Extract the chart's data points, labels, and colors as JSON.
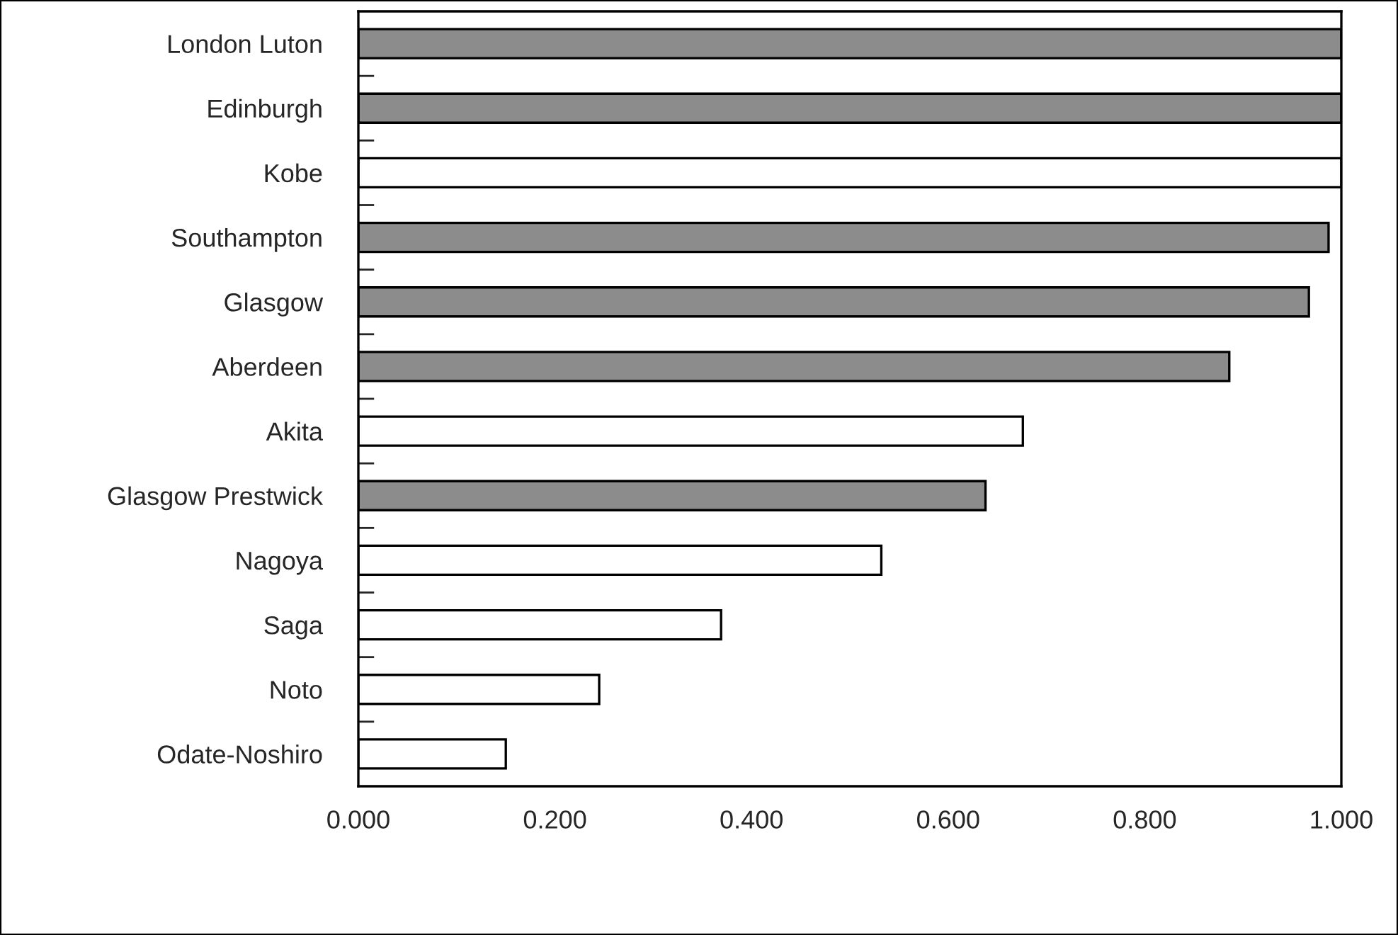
{
  "chart_data": {
    "type": "bar",
    "orientation": "horizontal",
    "categories": [
      "London Luton",
      "Edinburgh",
      "Kobe",
      "Southampton",
      "Glasgow",
      "Aberdeen",
      "Akita",
      "Glasgow Prestwick",
      "Nagoya",
      "Saga",
      "Noto",
      "Odate-Noshiro"
    ],
    "values": [
      1.0,
      1.0,
      1.0,
      0.987,
      0.967,
      0.886,
      0.676,
      0.638,
      0.532,
      0.369,
      0.245,
      0.15
    ],
    "colors": [
      "#8c8c8c",
      "#8c8c8c",
      "#ffffff",
      "#8c8c8c",
      "#8c8c8c",
      "#8c8c8c",
      "#ffffff",
      "#8c8c8c",
      "#ffffff",
      "#ffffff",
      "#ffffff",
      "#ffffff"
    ],
    "xlim": [
      0,
      1
    ],
    "xticks": [
      {
        "value": 0,
        "label": "0.000"
      },
      {
        "value": 0.2,
        "label": "0.200"
      },
      {
        "value": 0.4,
        "label": "0.400"
      },
      {
        "value": 0.6,
        "label": "0.600"
      },
      {
        "value": 0.8,
        "label": "0.800"
      },
      {
        "value": 1.0,
        "label": "1.000"
      }
    ],
    "grid": false
  }
}
